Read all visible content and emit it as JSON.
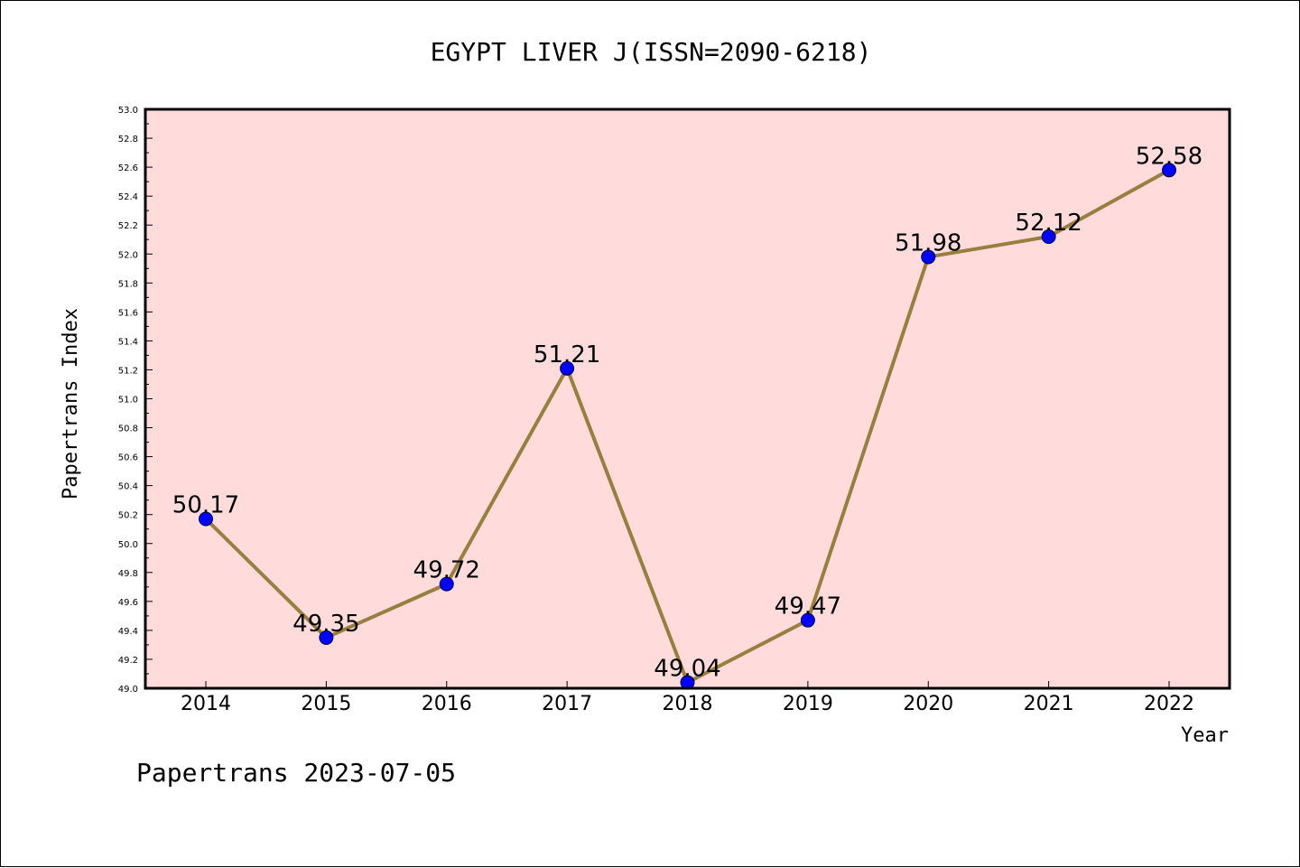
{
  "chart_data": {
    "type": "line",
    "title": "EGYPT LIVER J(ISSN=2090-6218)",
    "xlabel": "Year",
    "ylabel": "Papertrans Index",
    "footer": "Papertrans 2023-07-05",
    "categories": [
      "2014",
      "2015",
      "2016",
      "2017",
      "2018",
      "2019",
      "2020",
      "2021",
      "2022"
    ],
    "values": [
      50.17,
      49.35,
      49.72,
      51.21,
      49.04,
      49.47,
      51.98,
      52.12,
      52.58
    ],
    "value_labels": [
      "50.17",
      "49.35",
      "49.72",
      "51.21",
      "49.04",
      "49.47",
      "51.98",
      "52.12",
      "52.58"
    ],
    "ylim": [
      49.0,
      53.0
    ],
    "y_ticks": [
      "49.0",
      "49.2",
      "49.4",
      "49.6",
      "49.8",
      "50.0",
      "50.2",
      "50.4",
      "50.6",
      "50.8",
      "51.0",
      "51.2",
      "51.4",
      "51.6",
      "51.8",
      "52.0",
      "52.2",
      "52.4",
      "52.6",
      "52.8",
      "53.0"
    ],
    "grid": false,
    "legend": "none",
    "colors": {
      "plot_background": "#ffdcdb",
      "line": "#9a7e3f",
      "marker": "#0000ff",
      "axis": "#000000"
    }
  }
}
